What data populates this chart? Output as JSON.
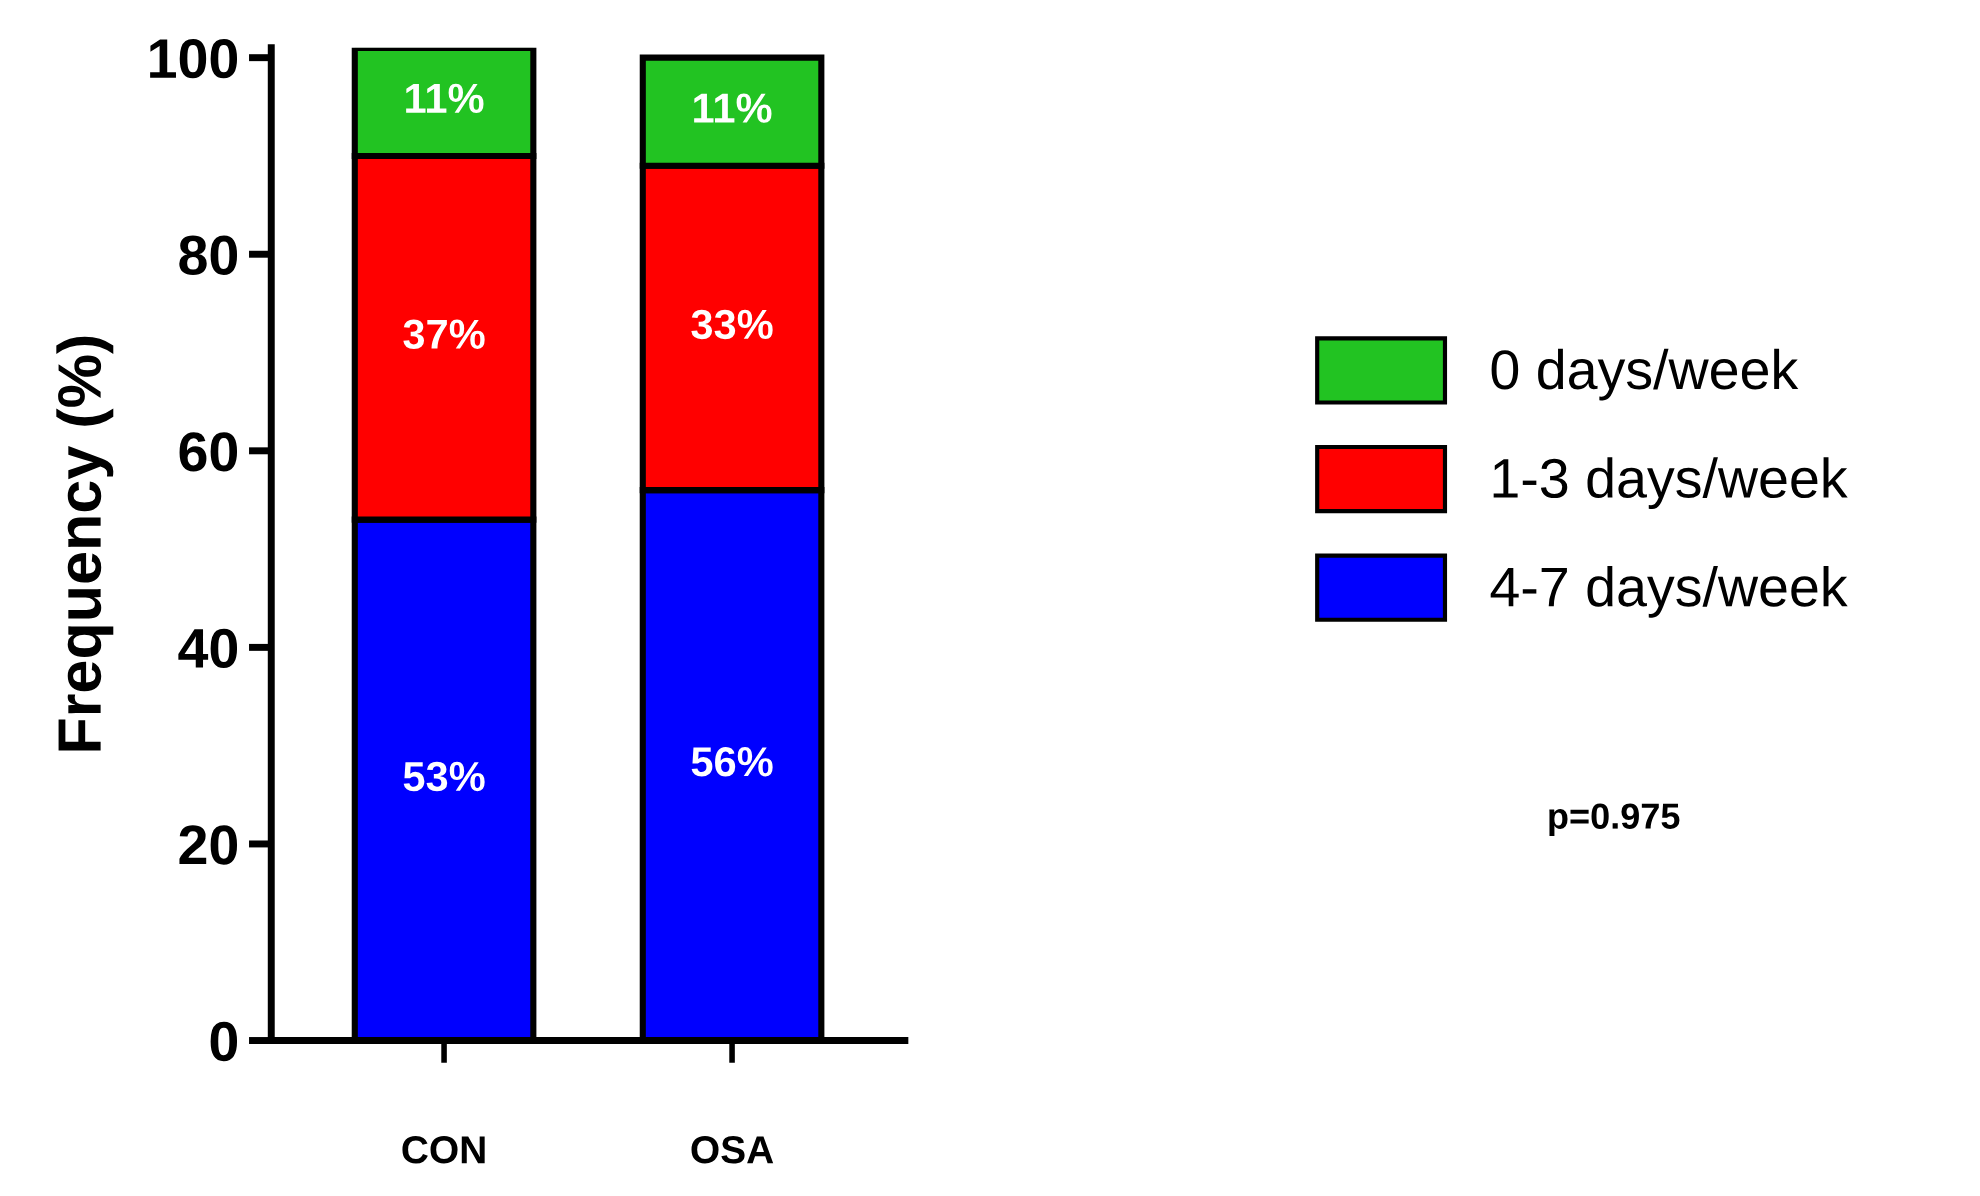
{
  "chart_data": {
    "type": "bar",
    "stacked": true,
    "ylabel": "Frequency (%)",
    "categories": [
      "CON",
      "OSA"
    ],
    "series": [
      {
        "name": "4-7 days/week",
        "color": "#0000ff",
        "values": [
          53,
          56
        ],
        "value_labels": [
          "53%",
          "56%"
        ]
      },
      {
        "name": "1-3 days/week",
        "color": "#ff0000",
        "values": [
          37,
          33
        ],
        "value_labels": [
          "37%",
          "33%"
        ]
      },
      {
        "name": "0 days/week",
        "color": "#22c322",
        "values": [
          11,
          11
        ],
        "value_labels": [
          "11%",
          "11%"
        ]
      }
    ],
    "ylim": [
      0,
      101
    ],
    "yticks": [
      0,
      20,
      40,
      60,
      80,
      100
    ],
    "grid": false,
    "legend": "right",
    "annotations": [
      "p=0.975"
    ]
  }
}
